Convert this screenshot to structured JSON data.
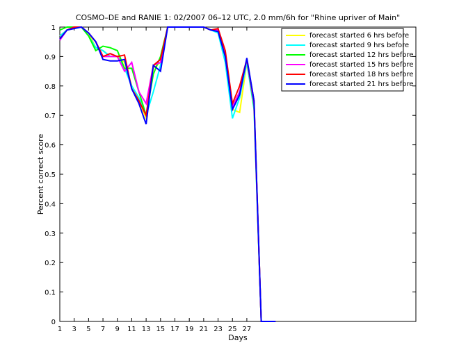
{
  "chart_data": {
    "type": "line",
    "title": "COSMO–DE and RANIE 1: 02/2007 06–12 UTC, 2.0 mm/6h for \"Rhine upriver of Main\"",
    "x_label": "Days",
    "y_label": "Percent correct score",
    "x": [
      1,
      2,
      3,
      4,
      5,
      6,
      7,
      8,
      9,
      10,
      11,
      12,
      13,
      14,
      15,
      16,
      17,
      18,
      19,
      20,
      21,
      22,
      23,
      24,
      25,
      26,
      27,
      28,
      29,
      30,
      31
    ],
    "series": [
      {
        "name": "forecast started 6 hrs before",
        "color": "#ffff00",
        "values": [
          0.97,
          0.99,
          1,
          1,
          0.98,
          0.93,
          0.92,
          0.9,
          0.9,
          0.88,
          0.8,
          0.75,
          0.69,
          0.86,
          0.88,
          1,
          1,
          1,
          1,
          1,
          1,
          0.99,
          0.99,
          0.9,
          0.72,
          0.71,
          0.88,
          0.74,
          0,
          0,
          0
        ]
      },
      {
        "name": "forecast started 9 hrs before",
        "color": "#00ffff",
        "values": [
          0.97,
          0.99,
          1,
          1,
          0.97,
          0.93,
          0.92,
          0.9,
          0.9,
          0.86,
          0.8,
          0.76,
          0.7,
          0.78,
          0.87,
          1,
          1,
          1,
          1,
          1,
          1,
          0.99,
          0.98,
          0.88,
          0.69,
          0.76,
          0.88,
          0.72,
          0,
          0,
          0
        ]
      },
      {
        "name": "forecast started 12 hrs before",
        "color": "#00ff00",
        "values": [
          0.99,
          1,
          1,
          1,
          0.97,
          0.92,
          0.935,
          0.93,
          0.92,
          0.86,
          0.86,
          0.78,
          0.7,
          0.84,
          0.9,
          1,
          1,
          1,
          1,
          1,
          1,
          0.99,
          0.99,
          0.9,
          0.73,
          0.78,
          0.89,
          0.73,
          0,
          0,
          0
        ]
      },
      {
        "name": "forecast started 15 hrs before",
        "color": "#ff00ff",
        "values": [
          0.955,
          0.99,
          1,
          1,
          0.98,
          0.95,
          0.9,
          0.9,
          0.9,
          0.85,
          0.88,
          0.78,
          0.74,
          0.87,
          0.88,
          1,
          1,
          1,
          1,
          1,
          1,
          0.99,
          0.99,
          0.9,
          0.73,
          0.78,
          0.89,
          0.74,
          0,
          0,
          0
        ]
      },
      {
        "name": "forecast started 18 hrs before",
        "color": "#ff0000",
        "values": [
          0.96,
          0.99,
          1,
          1,
          0.98,
          0.95,
          0.9,
          0.91,
          0.9,
          0.905,
          0.79,
          0.75,
          0.7,
          0.87,
          0.89,
          1,
          1,
          1,
          1,
          1,
          1,
          0.99,
          0.995,
          0.92,
          0.74,
          0.8,
          0.89,
          0.75,
          0,
          0,
          0
        ]
      },
      {
        "name": "forecast started 21 hrs before",
        "color": "#0000ff",
        "values": [
          0.96,
          0.99,
          0.995,
          1,
          0.98,
          0.95,
          0.89,
          0.885,
          0.885,
          0.89,
          0.79,
          0.74,
          0.67,
          0.87,
          0.85,
          1,
          1,
          1,
          1,
          1,
          1,
          0.99,
          0.985,
          0.9,
          0.72,
          0.77,
          0.895,
          0.75,
          0,
          0,
          0
        ]
      }
    ],
    "xlim": [
      1,
      50.5
    ],
    "ylim": [
      0,
      1
    ],
    "xticks": [
      1,
      3,
      5,
      7,
      9,
      11,
      13,
      15,
      17,
      19,
      21,
      23,
      25,
      27
    ],
    "yticks": [
      0,
      0.1,
      0.2,
      0.3,
      0.4,
      0.5,
      0.6,
      0.7,
      0.8,
      0.9,
      1
    ],
    "legend": "upper right"
  }
}
